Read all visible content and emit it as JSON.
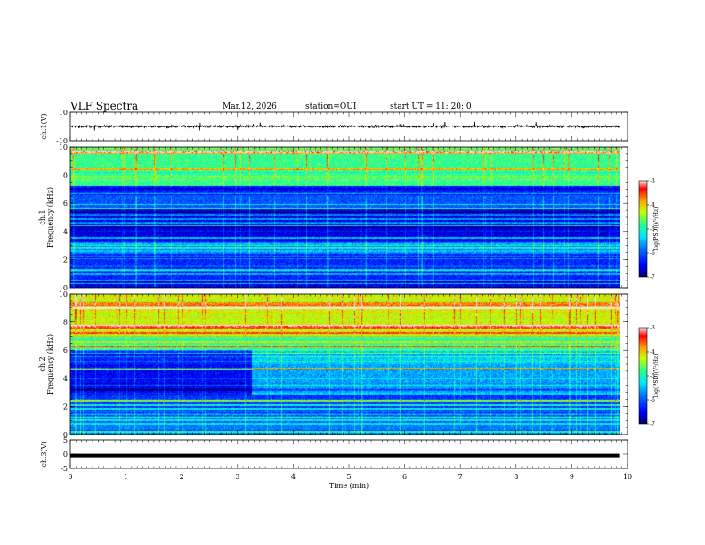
{
  "header": {
    "title": "VLF Spectra",
    "date": "Mar.12, 2026",
    "station": "station=OUI",
    "start": "start  UT =   11: 20: 0"
  },
  "colors": {
    "colormap": [
      "#000080",
      "#0000ff",
      "#00a0ff",
      "#00ffff",
      "#00ff80",
      "#ffff00",
      "#ff8000",
      "#ff0000",
      "#ffffff"
    ]
  },
  "chart_data": [
    {
      "type": "line",
      "name": "ch1-waveform",
      "ylabel": "ch.1(V)",
      "ylim": [
        -10,
        10
      ],
      "yticks": [
        "10",
        "-10"
      ],
      "baseline": 0,
      "typical_amplitude": 1.5
    },
    {
      "type": "heatmap",
      "name": "ch1-spectrogram",
      "ylabel": "ch.1\nFrequency (kHz)",
      "ylabel_lines": [
        "ch.1",
        "Frequency (kHz)"
      ],
      "ylim": [
        0,
        10
      ],
      "yticks": [
        "0",
        "2",
        "4",
        "6",
        "8",
        "10"
      ],
      "colorbar": {
        "label": "log(PSD)(V²/Hz)",
        "range": [
          -7,
          -3
        ],
        "ticks": [
          "-3",
          "-4",
          "-5",
          "-6",
          "-7"
        ]
      },
      "frequency_bands_khz": [
        {
          "from": 0,
          "to": 0.6,
          "level": -6.5
        },
        {
          "from": 0.6,
          "to": 2.4,
          "level": -6.3
        },
        {
          "from": 2.4,
          "to": 3.2,
          "level": -5.8
        },
        {
          "from": 3.2,
          "to": 5.6,
          "level": -6.6
        },
        {
          "from": 5.6,
          "to": 6.6,
          "level": -6.0
        },
        {
          "from": 6.6,
          "to": 7.2,
          "level": -6.4
        },
        {
          "from": 7.2,
          "to": 10,
          "level": -4.8
        }
      ]
    },
    {
      "type": "heatmap",
      "name": "ch2-spectrogram",
      "ylabel": "ch.2\nFrequency (kHz)",
      "ylabel_lines": [
        "ch.2",
        "Frequency (kHz)"
      ],
      "ylim": [
        0,
        10
      ],
      "yticks": [
        "0",
        "2",
        "4",
        "6",
        "8",
        "10"
      ],
      "colorbar": {
        "label": "log(PSD)(V²/Hz)",
        "range": [
          -7,
          -3
        ],
        "ticks": [
          "-3",
          "-4",
          "-5",
          "-6",
          "-7"
        ]
      },
      "frequency_bands_khz": [
        {
          "from": 0,
          "to": 1.5,
          "level": -5.8
        },
        {
          "from": 1.5,
          "to": 3.0,
          "level": -6.2
        },
        {
          "from": 3.0,
          "to": 5.0,
          "level": -5.6
        },
        {
          "from": 5.0,
          "to": 6.0,
          "level": -5.4
        },
        {
          "from": 6.0,
          "to": 7.0,
          "level": -4.9
        },
        {
          "from": 7.0,
          "to": 10,
          "level": -4.2
        }
      ],
      "level_change_time_min": 3.25
    },
    {
      "type": "line",
      "name": "ch3-waveform",
      "ylabel": "ch.3(V)",
      "ylim": [
        -5,
        5
      ],
      "yticks": [
        "5",
        "0",
        "-5"
      ],
      "baseline": -0.5
    }
  ],
  "time_axis": {
    "label": "Time (min)",
    "ticks": [
      "0",
      "1",
      "2",
      "3",
      "4",
      "5",
      "6",
      "7",
      "8",
      "9",
      "10"
    ],
    "range": [
      0,
      10
    ],
    "data_end": 9.85
  }
}
